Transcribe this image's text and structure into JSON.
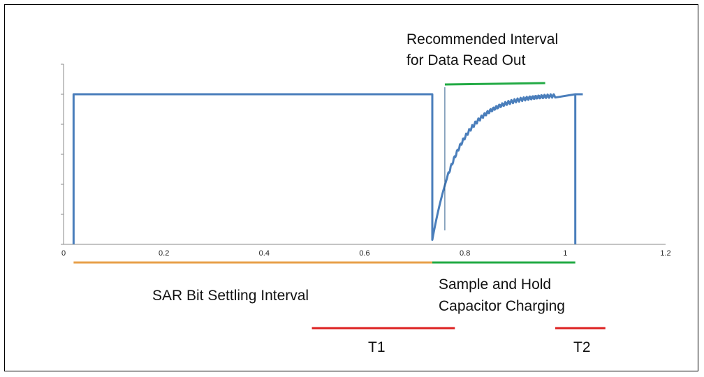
{
  "chart_data": {
    "type": "line",
    "title": "",
    "xlabel": "",
    "ylabel": "",
    "xlim": [
      0,
      1.2
    ],
    "x_ticks": [
      "0",
      "0.2",
      "0.4",
      "0.6",
      "0.8",
      "1",
      "1.2"
    ],
    "ylim": [
      0,
      1
    ],
    "y_ticks": [
      0,
      0.2,
      0.4,
      0.6,
      0.8,
      1.0
    ],
    "grid": false,
    "line_color": "#4a7ebb",
    "waveform": {
      "baseline": 0,
      "high": 1.0,
      "segments": [
        {
          "kind": "pulse_start",
          "x": 0.02
        },
        {
          "kind": "high",
          "from": 0.02,
          "to": 0.735
        },
        {
          "kind": "drop",
          "x": 0.735,
          "to": 0.03
        },
        {
          "kind": "charging",
          "from": 0.735,
          "to": 0.98,
          "start": 0.03,
          "end": 1.0,
          "ripple": true
        },
        {
          "kind": "high",
          "from": 0.98,
          "to": 1.035
        },
        {
          "kind": "pulse_end",
          "x": 1.02
        }
      ]
    },
    "annotations": {
      "recommended_line1": "Recommended Interval",
      "recommended_line2": "for Data Read Out",
      "sar_label": "SAR Bit Settling Interval",
      "sh_line1": "Sample and Hold",
      "sh_line2": "Capacitor Charging",
      "t1": "T1",
      "t2": "T2"
    },
    "intervals": [
      {
        "name": "sar_bit_settling",
        "from": 0.02,
        "to": 0.735,
        "color": "#e8a04a"
      },
      {
        "name": "sample_and_hold",
        "from": 0.735,
        "to": 1.02,
        "color": "#22aa44"
      },
      {
        "name": "recommended_readout",
        "from": 0.76,
        "to": 0.96,
        "color": "#22aa44"
      },
      {
        "name": "t1",
        "from": 0.495,
        "to": 0.78,
        "color": "#dd2222"
      },
      {
        "name": "t2",
        "from": 0.98,
        "to": 1.08,
        "color": "#dd2222"
      }
    ]
  }
}
